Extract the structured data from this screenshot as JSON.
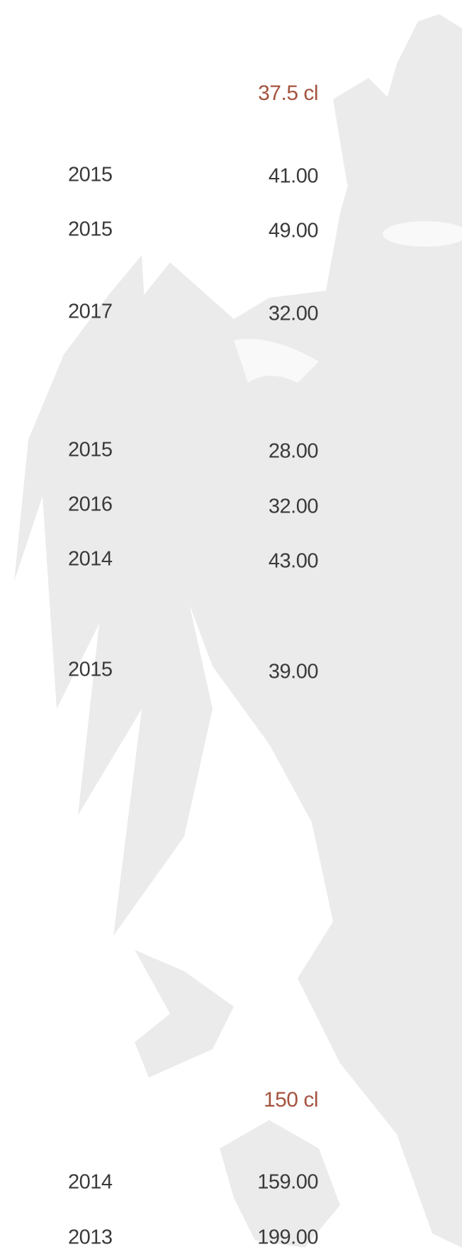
{
  "sections": [
    {
      "heading": "37.5 cl",
      "rows": [
        {
          "year": "2015",
          "price": "41.00"
        },
        {
          "year": "2015",
          "price": "49.00"
        },
        {
          "year": "2017",
          "price": "32.00"
        },
        {
          "year": "2015",
          "price": "28.00"
        },
        {
          "year": "2016",
          "price": "32.00"
        },
        {
          "year": "2014",
          "price": "43.00"
        },
        {
          "year": "2015",
          "price": "39.00"
        }
      ]
    },
    {
      "heading": "150 cl",
      "rows": [
        {
          "year": "2014",
          "price": "159.00"
        },
        {
          "year": "2013",
          "price": "199.00"
        }
      ]
    }
  ]
}
